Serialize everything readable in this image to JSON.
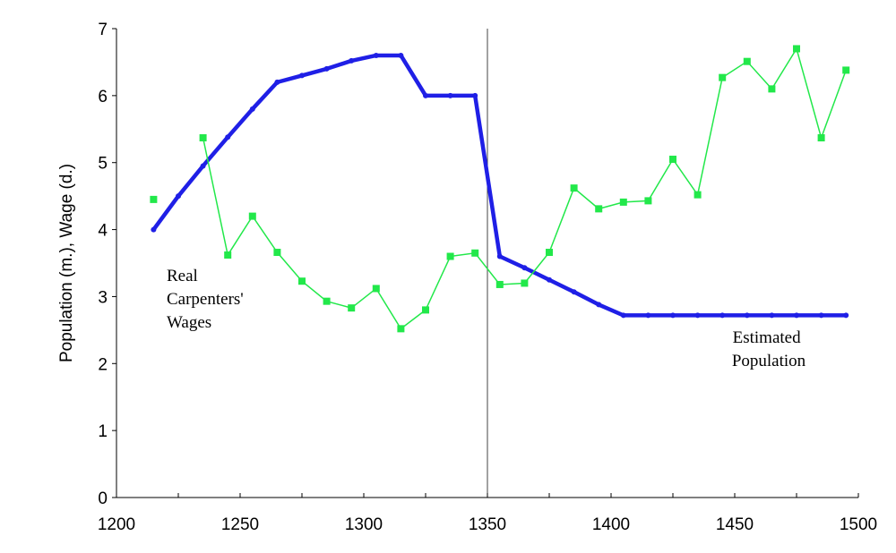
{
  "chart_data": {
    "type": "line",
    "ylabel": "Population (m.), Wage (d.)",
    "xlabel": "",
    "xlim": [
      1200,
      1500
    ],
    "ylim": [
      0,
      7
    ],
    "x_ticks": [
      "1200",
      "1250",
      "1300",
      "1350",
      "1400",
      "1450",
      "1500"
    ],
    "y_ticks": [
      "0",
      "1",
      "2",
      "3",
      "4",
      "5",
      "6",
      "7"
    ],
    "grid": false,
    "reference_line_x": 1350,
    "annotations": {
      "wages_label": [
        "Real",
        "Carpenters'",
        "Wages"
      ],
      "population_label": [
        "Estimated",
        "Population"
      ]
    },
    "series": [
      {
        "name": "Estimated Population",
        "color": "#1f1fe6",
        "points": [
          [
            1215,
            4.0
          ],
          [
            1225,
            4.5
          ],
          [
            1235,
            4.95
          ],
          [
            1245,
            5.38
          ],
          [
            1255,
            5.8
          ],
          [
            1265,
            6.2
          ],
          [
            1275,
            6.3
          ],
          [
            1285,
            6.4
          ],
          [
            1295,
            6.52
          ],
          [
            1305,
            6.6
          ],
          [
            1315,
            6.6
          ],
          [
            1325,
            6.0
          ],
          [
            1335,
            6.0
          ],
          [
            1345,
            6.0
          ],
          [
            1355,
            3.6
          ],
          [
            1365,
            3.43
          ],
          [
            1375,
            3.25
          ],
          [
            1385,
            3.07
          ],
          [
            1395,
            2.88
          ],
          [
            1405,
            2.72
          ],
          [
            1415,
            2.72
          ],
          [
            1425,
            2.72
          ],
          [
            1435,
            2.72
          ],
          [
            1445,
            2.72
          ],
          [
            1455,
            2.72
          ],
          [
            1465,
            2.72
          ],
          [
            1475,
            2.72
          ],
          [
            1485,
            2.72
          ],
          [
            1495,
            2.72
          ]
        ]
      },
      {
        "name": "Real Carpenters' Wages",
        "color": "#22e84a",
        "points": [
          [
            1215,
            4.45
          ],
          [
            1235,
            5.37
          ],
          [
            1245,
            3.62
          ],
          [
            1255,
            4.2
          ],
          [
            1265,
            3.66
          ],
          [
            1275,
            3.23
          ],
          [
            1285,
            2.93
          ],
          [
            1295,
            2.83
          ],
          [
            1305,
            3.12
          ],
          [
            1315,
            2.52
          ],
          [
            1325,
            2.8
          ],
          [
            1335,
            3.6
          ],
          [
            1345,
            3.65
          ],
          [
            1355,
            3.18
          ],
          [
            1365,
            3.2
          ],
          [
            1375,
            3.66
          ],
          [
            1385,
            4.62
          ],
          [
            1395,
            4.31
          ],
          [
            1405,
            4.41
          ],
          [
            1415,
            4.43
          ],
          [
            1425,
            5.05
          ],
          [
            1435,
            4.52
          ],
          [
            1445,
            6.27
          ],
          [
            1455,
            6.51
          ],
          [
            1465,
            6.1
          ],
          [
            1475,
            6.7
          ],
          [
            1485,
            5.37
          ],
          [
            1495,
            6.38
          ]
        ]
      }
    ]
  }
}
